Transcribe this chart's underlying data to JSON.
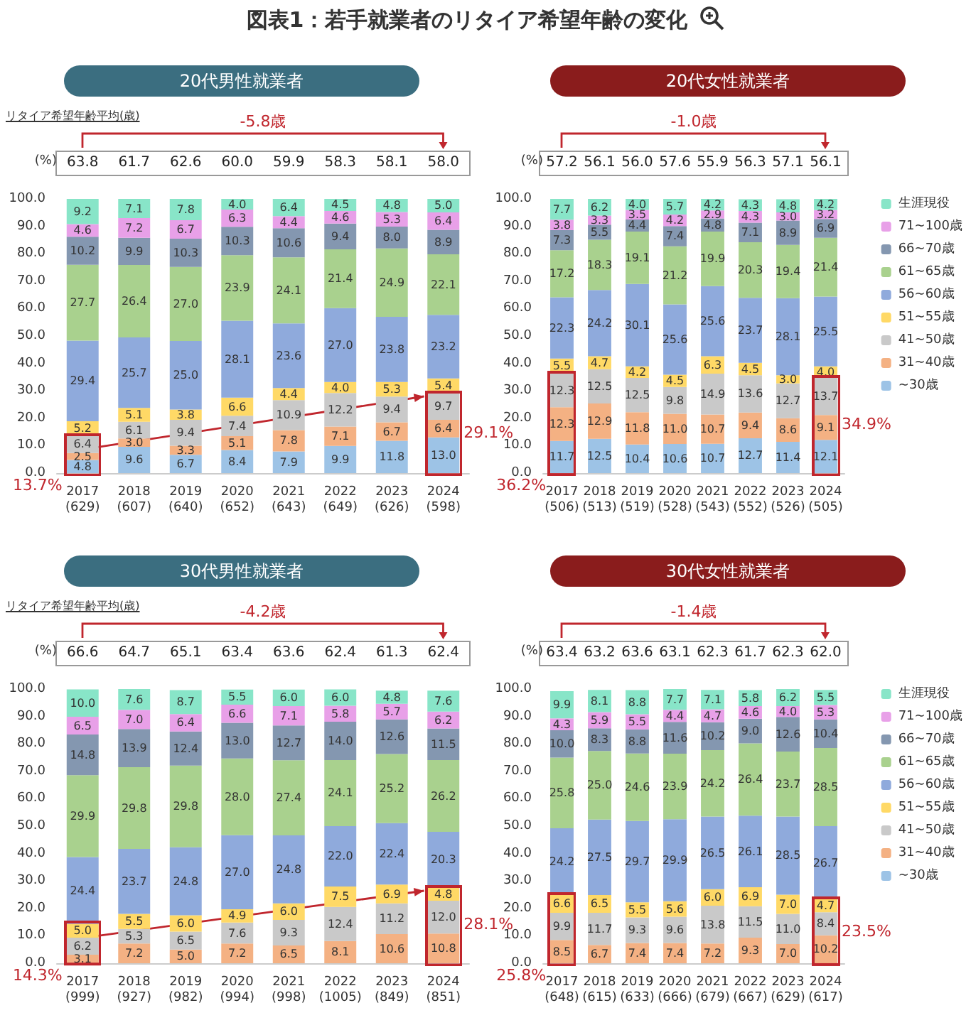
{
  "chart_data": [
    {
      "type": "bar",
      "title": "図表1：若手就業者のリタイア希望年齢の変化",
      "subtitle": "20代男性就業者",
      "ylabel": "(%)",
      "stacked": true,
      "grid": false,
      "legend": false,
      "categories": [
        "2017\n(629)",
        "2018\n(607)",
        "2019\n(640)",
        "2020\n(652)",
        "2021\n(643)",
        "2022\n(649)",
        "2023\n(626)",
        "2024\n(598)"
      ],
      "ylim": [
        0,
        100
      ],
      "yticks": [
        {
          "value": 0,
          "label": "0.0"
        },
        {
          "value": 10,
          "label": "10.0"
        },
        {
          "value": 20,
          "label": "20.0"
        },
        {
          "value": 30,
          "label": "30.0"
        },
        {
          "value": 40,
          "label": "40.0"
        },
        {
          "value": 50,
          "label": "50.0"
        },
        {
          "value": 60,
          "label": "60.0"
        },
        {
          "value": 70,
          "label": "70.0"
        },
        {
          "value": 80,
          "label": "80.0"
        },
        {
          "value": 90,
          "label": "90.0"
        },
        {
          "value": 100,
          "label": "100.0"
        }
      ],
      "series": [
        {
          "color": "#9dc3e6",
          "values": [
            4.8,
            9.6,
            6.7,
            8.4,
            7.9,
            9.9,
            11.8,
            13.0
          ],
          "value_labels": [
            "4.8",
            "9.6",
            "6.7",
            "8.4",
            "7.9",
            "9.9",
            "11.8",
            "13.0"
          ]
        },
        {
          "color": "#f4b183",
          "values": [
            2.5,
            3.0,
            3.3,
            5.1,
            7.8,
            7.1,
            6.7,
            6.4
          ],
          "value_labels": [
            "2.5",
            "3.0",
            "3.3",
            "5.1",
            "7.8",
            "7.1",
            "6.7",
            "6.4"
          ]
        },
        {
          "color": "#c9c9c9",
          "values": [
            6.4,
            6.1,
            9.4,
            7.4,
            10.9,
            12.2,
            9.4,
            9.7
          ],
          "value_labels": [
            "6.4",
            "6.1",
            "9.4",
            "7.4",
            "10.9",
            "12.2",
            "9.4",
            "9.7"
          ]
        },
        {
          "color": "#ffd966",
          "values": [
            5.2,
            5.1,
            3.8,
            6.6,
            4.4,
            4.0,
            5.3,
            5.4
          ],
          "value_labels": [
            "5.2",
            "5.1",
            "3.8",
            "6.6",
            "4.4",
            "4.0",
            "5.3",
            "5.4"
          ]
        },
        {
          "color": "#8faadc",
          "values": [
            29.4,
            25.7,
            25.0,
            28.1,
            23.6,
            27.0,
            23.8,
            23.2
          ],
          "value_labels": [
            "29.4",
            "25.7",
            "25.0",
            "28.1",
            "23.6",
            "27.0",
            "23.8",
            "23.2"
          ]
        },
        {
          "color": "#a9d18e",
          "values": [
            27.7,
            26.4,
            27.0,
            23.9,
            24.1,
            21.4,
            24.9,
            22.1
          ],
          "value_labels": [
            "27.7",
            "26.4",
            "27.0",
            "23.9",
            "24.1",
            "21.4",
            "24.9",
            "22.1"
          ]
        },
        {
          "color": "#8497b0",
          "values": [
            10.2,
            9.9,
            10.3,
            10.3,
            10.6,
            9.4,
            8.0,
            8.9
          ],
          "value_labels": [
            "10.2",
            "9.9",
            "10.3",
            "10.3",
            "10.6",
            "9.4",
            "8.0",
            "8.9"
          ]
        },
        {
          "color": "#e8a0e8",
          "values": [
            4.6,
            7.2,
            6.7,
            6.3,
            4.4,
            4.6,
            5.3,
            6.4
          ],
          "value_labels": [
            "4.6",
            "7.2",
            "6.7",
            "6.3",
            "4.4",
            "4.6",
            "5.3",
            "6.4"
          ]
        },
        {
          "color": "#88e5c8",
          "values": [
            9.2,
            7.1,
            7.8,
            4.0,
            6.4,
            4.5,
            4.8,
            5.0
          ],
          "value_labels": [
            "9.2",
            "7.1",
            "7.8",
            "4.0",
            "6.4",
            "4.5",
            "4.8",
            "5.0"
          ]
        }
      ],
      "annotations": [
        "63.8",
        "61.7",
        "62.6",
        "60.0",
        "59.9",
        "58.3",
        "58.1",
        "58.0",
        "-5.8歳",
        "リタイア希望年齢平均(歳)",
        {
          "text": "13.7%",
          "x": "2017\n(629)",
          "y": 13.7
        },
        {
          "text": "29.1%",
          "x": "2024\n(598)",
          "y": 29.1
        }
      ]
    },
    {
      "type": "bar",
      "subtitle": "20代女性就業者",
      "ylabel": "(%)",
      "stacked": true,
      "grid": false,
      "legend": "right",
      "categories": [
        "2017\n(506)",
        "2018\n(513)",
        "2019\n(519)",
        "2020\n(528)",
        "2021\n(543)",
        "2022\n(552)",
        "2023\n(526)",
        "2024\n(505)"
      ],
      "ylim": [
        0,
        100
      ],
      "yticks": [
        {
          "value": 0,
          "label": "0.0"
        },
        {
          "value": 10,
          "label": "10.0"
        },
        {
          "value": 20,
          "label": "20.0"
        },
        {
          "value": 30,
          "label": "30.0"
        },
        {
          "value": 40,
          "label": "40.0"
        },
        {
          "value": 50,
          "label": "50.0"
        },
        {
          "value": 60,
          "label": "60.0"
        },
        {
          "value": 70,
          "label": "70.0"
        },
        {
          "value": 80,
          "label": "80.0"
        },
        {
          "value": 90,
          "label": "90.0"
        },
        {
          "value": 100,
          "label": "100.0"
        }
      ],
      "series": [
        {
          "name": "~30歳",
          "color": "#9dc3e6",
          "values": [
            11.7,
            12.5,
            10.4,
            10.6,
            10.7,
            12.7,
            11.4,
            12.1
          ],
          "value_labels": [
            "11.7",
            "12.5",
            "10.4",
            "10.6",
            "10.7",
            "12.7",
            "11.4",
            "12.1"
          ]
        },
        {
          "name": "31~40歳",
          "color": "#f4b183",
          "values": [
            12.3,
            12.9,
            11.8,
            11.0,
            10.7,
            9.4,
            8.6,
            9.1
          ],
          "value_labels": [
            "12.3",
            "12.9",
            "11.8",
            "11.0",
            "10.7",
            "9.4",
            "8.6",
            "9.1"
          ]
        },
        {
          "name": "41~50歳",
          "color": "#c9c9c9",
          "values": [
            12.3,
            12.5,
            12.5,
            9.8,
            14.9,
            13.6,
            12.7,
            13.7
          ],
          "value_labels": [
            "12.3",
            "12.5",
            "12.5",
            "9.8",
            "14.9",
            "13.6",
            "12.7",
            "13.7"
          ]
        },
        {
          "name": "51~55歳",
          "color": "#ffd966",
          "values": [
            5.5,
            4.7,
            4.2,
            4.5,
            6.3,
            4.5,
            3.0,
            4.0
          ],
          "value_labels": [
            "5.5",
            "4.7",
            "4.2",
            "4.5",
            "6.3",
            "4.5",
            "3.0",
            "4.0"
          ]
        },
        {
          "name": "56~60歳",
          "color": "#8faadc",
          "values": [
            22.3,
            24.2,
            30.1,
            25.6,
            25.6,
            23.7,
            28.1,
            25.5
          ],
          "value_labels": [
            "22.3",
            "24.2",
            "30.1",
            "25.6",
            "25.6",
            "23.7",
            "28.1",
            "25.5"
          ]
        },
        {
          "name": "61~65歳",
          "color": "#a9d18e",
          "values": [
            17.2,
            18.3,
            19.1,
            21.2,
            19.9,
            20.3,
            19.4,
            21.4
          ],
          "value_labels": [
            "17.2",
            "18.3",
            "19.1",
            "21.2",
            "19.9",
            "20.3",
            "19.4",
            "21.4"
          ]
        },
        {
          "name": "66~70歳",
          "color": "#8497b0",
          "values": [
            7.3,
            5.5,
            4.4,
            7.4,
            4.8,
            7.1,
            8.9,
            6.9
          ],
          "value_labels": [
            "7.3",
            "5.5",
            "4.4",
            "7.4",
            "4.8",
            "7.1",
            "8.9",
            "6.9"
          ]
        },
        {
          "name": "71~100歳",
          "color": "#e8a0e8",
          "values": [
            3.8,
            3.3,
            3.5,
            4.2,
            2.9,
            4.3,
            3.0,
            3.2
          ],
          "value_labels": [
            "3.8",
            "3.3",
            "3.5",
            "4.2",
            "2.9",
            "4.3",
            "3.0",
            "3.2"
          ]
        },
        {
          "name": "生涯現役",
          "color": "#88e5c8",
          "values": [
            7.7,
            6.2,
            4.0,
            5.7,
            4.2,
            4.3,
            4.8,
            4.2
          ],
          "value_labels": [
            "7.7",
            "6.2",
            "4.0",
            "5.7",
            "4.2",
            "4.3",
            "4.8",
            "4.2"
          ]
        }
      ],
      "annotations": [
        "57.2",
        "56.1",
        "56.0",
        "57.6",
        "55.9",
        "56.3",
        "57.1",
        "56.1",
        "-1.0歳",
        {
          "text": "36.2%",
          "x": "2017\n(506)",
          "y": 0
        },
        {
          "text": "34.9%",
          "x": "2024\n(505)",
          "y": 34.9
        }
      ]
    },
    {
      "type": "bar",
      "subtitle": "30代男性就業者",
      "ylabel": "(%)",
      "stacked": true,
      "grid": false,
      "legend": false,
      "categories": [
        "2017\n(999)",
        "2018\n(927)",
        "2019\n(982)",
        "2020\n(994)",
        "2021\n(998)",
        "2022\n(1005)",
        "2023\n(849)",
        "2024\n(851)"
      ],
      "ylim": [
        0,
        100
      ],
      "yticks": [
        {
          "value": 0,
          "label": "0.0"
        },
        {
          "value": 10,
          "label": "10.0"
        },
        {
          "value": 20,
          "label": "20.0"
        },
        {
          "value": 30,
          "label": "30.0"
        },
        {
          "value": 40,
          "label": "40.0"
        },
        {
          "value": 50,
          "label": "50.0"
        },
        {
          "value": 60,
          "label": "60.0"
        },
        {
          "value": 70,
          "label": "70.0"
        },
        {
          "value": 80,
          "label": "80.0"
        },
        {
          "value": 90,
          "label": "90.0"
        },
        {
          "value": 100,
          "label": "100.0"
        }
      ],
      "series": [
        {
          "color": "#9dc3e6",
          "values": [
            null,
            null,
            null,
            null,
            null,
            null,
            null,
            null
          ],
          "value_labels": [
            null,
            null,
            null,
            null,
            null,
            null,
            null,
            null
          ]
        },
        {
          "color": "#f4b183",
          "values": [
            3.1,
            7.2,
            5.0,
            7.2,
            6.5,
            8.1,
            10.6,
            10.8
          ],
          "value_labels": [
            "3.1",
            "7.2",
            "5.0",
            "7.2",
            "6.5",
            "8.1",
            "10.6",
            "10.8"
          ]
        },
        {
          "color": "#c9c9c9",
          "values": [
            6.2,
            5.3,
            6.5,
            7.6,
            9.3,
            12.4,
            11.2,
            12.0
          ],
          "value_labels": [
            "6.2",
            "5.3",
            "6.5",
            "7.6",
            "9.3",
            "12.4",
            "11.2",
            "12.0"
          ]
        },
        {
          "color": "#ffd966",
          "values": [
            5.0,
            5.5,
            6.0,
            4.9,
            6.0,
            7.5,
            6.9,
            4.8
          ],
          "value_labels": [
            "5.0",
            "5.5",
            "6.0",
            "4.9",
            "6.0",
            "7.5",
            "6.9",
            "4.8"
          ]
        },
        {
          "color": "#8faadc",
          "values": [
            24.4,
            23.7,
            24.8,
            27.0,
            24.8,
            22.0,
            22.4,
            20.3
          ],
          "value_labels": [
            "24.4",
            "23.7",
            "24.8",
            "27.0",
            "24.8",
            "22.0",
            "22.4",
            "20.3"
          ]
        },
        {
          "color": "#a9d18e",
          "values": [
            29.9,
            29.8,
            29.8,
            28.0,
            27.4,
            24.1,
            25.2,
            26.2
          ],
          "value_labels": [
            "29.9",
            "29.8",
            "29.8",
            "28.0",
            "27.4",
            "24.1",
            "25.2",
            "26.2"
          ]
        },
        {
          "color": "#8497b0",
          "values": [
            14.8,
            13.9,
            12.4,
            13.0,
            12.7,
            14.0,
            12.6,
            11.5
          ],
          "value_labels": [
            "14.8",
            "13.9",
            "12.4",
            "13.0",
            "12.7",
            "14.0",
            "12.6",
            "11.5"
          ]
        },
        {
          "color": "#e8a0e8",
          "values": [
            6.5,
            7.0,
            6.4,
            6.6,
            7.1,
            5.8,
            5.7,
            6.2
          ],
          "value_labels": [
            "6.5",
            "7.0",
            "6.4",
            "6.6",
            "7.1",
            "5.8",
            "5.7",
            "6.2"
          ]
        },
        {
          "color": "#88e5c8",
          "values": [
            10.0,
            7.6,
            8.7,
            5.5,
            6.0,
            6.0,
            4.8,
            7.6
          ],
          "value_labels": [
            "10.0",
            "7.6",
            "8.7",
            "5.5",
            "6.0",
            "6.0",
            "4.8",
            "7.6"
          ]
        }
      ],
      "annotations": [
        "66.6",
        "64.7",
        "65.1",
        "63.4",
        "63.6",
        "62.4",
        "61.3",
        "62.4",
        "-4.2歳",
        "リタイア希望年齢平均(歳)",
        {
          "text": "14.3%",
          "x": "2017\n(999)",
          "y": 14.3
        },
        {
          "text": "28.1%",
          "x": "2024\n(851)",
          "y": 27.6
        }
      ]
    },
    {
      "type": "bar",
      "subtitle": "30代女性就業者",
      "ylabel": "(%)",
      "stacked": true,
      "grid": false,
      "legend": "right",
      "categories": [
        "2017\n(648)",
        "2018\n(615)",
        "2019\n(633)",
        "2020\n(666)",
        "2021\n(679)",
        "2022\n(667)",
        "2023\n(629)",
        "2024\n(617)"
      ],
      "ylim": [
        0,
        100
      ],
      "yticks": [
        {
          "value": 0,
          "label": "0.0"
        },
        {
          "value": 10,
          "label": "10.0"
        },
        {
          "value": 20,
          "label": "20.0"
        },
        {
          "value": 30,
          "label": "30.0"
        },
        {
          "value": 40,
          "label": "40.0"
        },
        {
          "value": 50,
          "label": "50.0"
        },
        {
          "value": 60,
          "label": "60.0"
        },
        {
          "value": 70,
          "label": "70.0"
        },
        {
          "value": 80,
          "label": "80.0"
        },
        {
          "value": 90,
          "label": "90.0"
        },
        {
          "value": 100,
          "label": "100.0"
        }
      ],
      "series": [
        {
          "name": "~30歳",
          "color": "#9dc3e6",
          "values": [
            null,
            null,
            null,
            null,
            null,
            null,
            null,
            null
          ],
          "value_labels": [
            null,
            null,
            null,
            null,
            null,
            null,
            null,
            null
          ]
        },
        {
          "name": "31~40歳",
          "color": "#f4b183",
          "values": [
            8.5,
            6.7,
            7.4,
            7.4,
            7.2,
            9.3,
            7.0,
            10.2
          ],
          "value_labels": [
            "8.5",
            "6.7",
            "7.4",
            "7.4",
            "7.2",
            "9.3",
            "7.0",
            "10.2"
          ]
        },
        {
          "name": "41~50歳",
          "color": "#c9c9c9",
          "values": [
            9.9,
            11.7,
            9.3,
            9.6,
            13.8,
            11.5,
            11.0,
            8.4
          ],
          "value_labels": [
            "9.9",
            "11.7",
            "9.3",
            "9.6",
            "13.8",
            "11.5",
            "11.0",
            "8.4"
          ]
        },
        {
          "name": "51~55歳",
          "color": "#ffd966",
          "values": [
            6.6,
            6.5,
            5.5,
            5.6,
            6.0,
            6.9,
            7.0,
            4.7
          ],
          "value_labels": [
            "6.6",
            "6.5",
            "5.5",
            "5.6",
            "6.0",
            "6.9",
            "7.0",
            "4.7"
          ]
        },
        {
          "name": "56~60歳",
          "color": "#8faadc",
          "values": [
            24.2,
            27.5,
            29.7,
            29.9,
            26.5,
            26.1,
            28.5,
            26.7
          ],
          "value_labels": [
            "24.2",
            "27.5",
            "29.7",
            "29.9",
            "26.5",
            "26.1",
            "28.5",
            "26.7"
          ]
        },
        {
          "name": "61~65歳",
          "color": "#a9d18e",
          "values": [
            25.8,
            25.0,
            24.6,
            23.9,
            24.2,
            26.4,
            23.7,
            28.5
          ],
          "value_labels": [
            "25.8",
            "25.0",
            "24.6",
            "23.9",
            "24.2",
            "26.4",
            "23.7",
            "28.5"
          ]
        },
        {
          "name": "66~70歳",
          "color": "#8497b0",
          "values": [
            10.0,
            8.3,
            8.8,
            11.6,
            10.2,
            9.0,
            12.6,
            10.4
          ],
          "value_labels": [
            "10.0",
            "8.3",
            "8.8",
            "11.6",
            "10.2",
            "9.0",
            "12.6",
            "10.4"
          ]
        },
        {
          "name": "71~100歳",
          "color": "#e8a0e8",
          "values": [
            4.3,
            5.9,
            5.5,
            4.4,
            4.7,
            4.6,
            4.0,
            5.3
          ],
          "value_labels": [
            "4.3",
            "5.9",
            "5.5",
            "4.4",
            "4.7",
            "4.6",
            "4.0",
            "5.3"
          ]
        },
        {
          "name": "生涯現役",
          "color": "#88e5c8",
          "values": [
            9.9,
            8.1,
            8.8,
            7.7,
            7.1,
            5.8,
            6.2,
            5.5
          ],
          "value_labels": [
            "9.9",
            "8.1",
            "8.8",
            "7.7",
            "7.1",
            "5.8",
            "6.2",
            "5.5"
          ]
        }
      ],
      "annotations": [
        "63.4",
        "63.2",
        "63.6",
        "63.1",
        "62.3",
        "61.7",
        "62.3",
        "62.0",
        "-1.4歳",
        {
          "text": "25.8%",
          "x": "2017\n(648)",
          "y": 0
        },
        {
          "text": "23.5%",
          "x": "2024\n(617)",
          "y": 23.3
        }
      ]
    }
  ]
}
